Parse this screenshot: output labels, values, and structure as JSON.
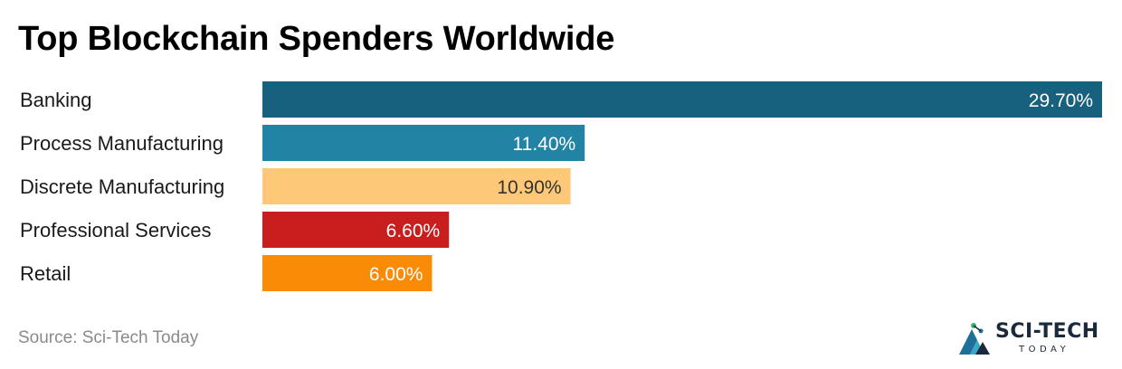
{
  "title": "Top Blockchain Spenders Worldwide",
  "source": "Source: Sci-Tech Today",
  "logo": {
    "main": "SCI-TECH",
    "sub": "TODAY"
  },
  "chart_data": {
    "type": "bar",
    "orientation": "horizontal",
    "title": "Top Blockchain Spenders Worldwide",
    "xlabel": "",
    "ylabel": "",
    "grid": false,
    "xlim": [
      0,
      29.7
    ],
    "categories": [
      "Banking",
      "Process Manufacturing",
      "Discrete Manufacturing",
      "Professional Services",
      "Retail"
    ],
    "values": [
      29.7,
      11.4,
      10.9,
      6.6,
      6.0
    ],
    "value_labels": [
      "29.70%",
      "11.40%",
      "10.90%",
      "6.60%",
      "6.00%"
    ],
    "colors": [
      "#18617e",
      "#2383a5",
      "#fdc978",
      "#c81e1e",
      "#f98b07"
    ],
    "label_colors": [
      "#ffffff",
      "#ffffff",
      "#333333",
      "#ffffff",
      "#ffffff"
    ]
  }
}
